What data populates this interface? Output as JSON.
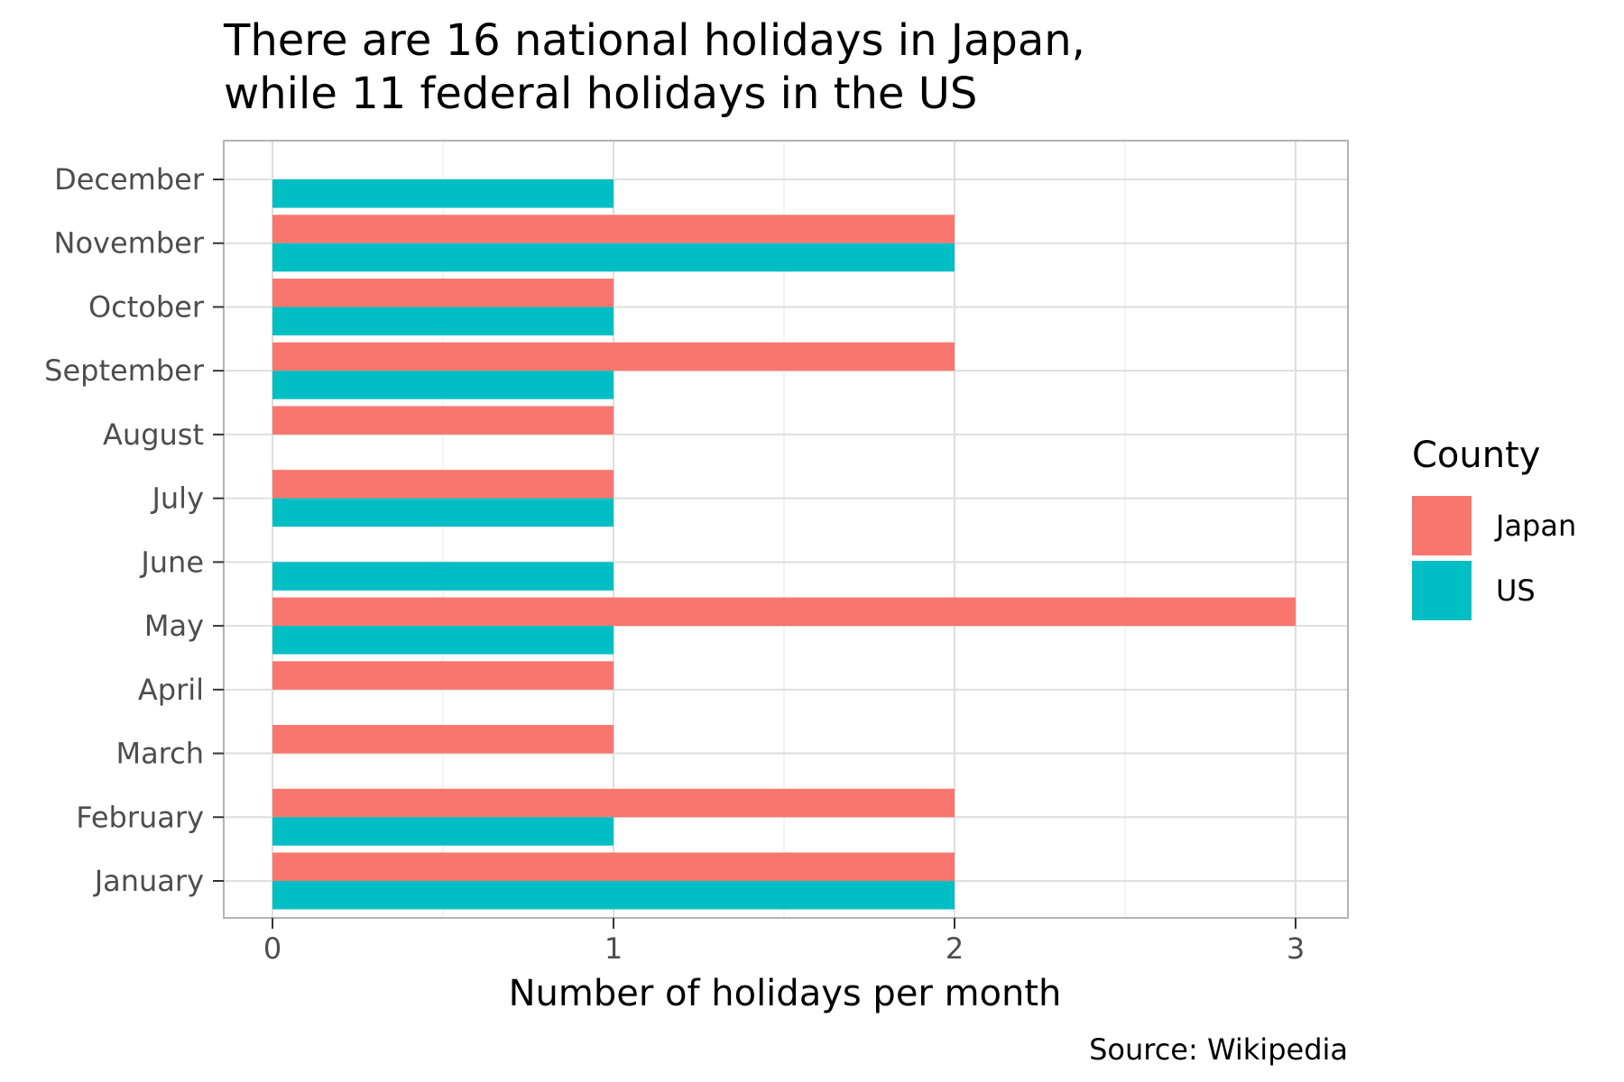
{
  "chart_data": {
    "type": "bar",
    "orientation": "horizontal",
    "title_line1": "There are 16 national holidays in Japan,",
    "title_line2": "while 11 federal holidays in the US",
    "xlabel": "Number of holidays per month",
    "ylabel": "",
    "caption": "Source: Wikipedia",
    "categories": [
      "January",
      "February",
      "March",
      "April",
      "May",
      "June",
      "July",
      "August",
      "September",
      "October",
      "November",
      "December"
    ],
    "series": [
      {
        "name": "Japan",
        "color": "#F8766D",
        "values": [
          2,
          2,
          1,
          1,
          3,
          0,
          1,
          1,
          2,
          1,
          2,
          0
        ]
      },
      {
        "name": "US",
        "color": "#00BFC4",
        "values": [
          2,
          1,
          0,
          0,
          1,
          1,
          1,
          0,
          1,
          1,
          2,
          1
        ]
      }
    ],
    "xlim": [
      0,
      3.15
    ],
    "xticks": [
      0,
      1,
      2,
      3
    ],
    "grid": true,
    "legend": {
      "title": "County",
      "position": "right"
    }
  }
}
